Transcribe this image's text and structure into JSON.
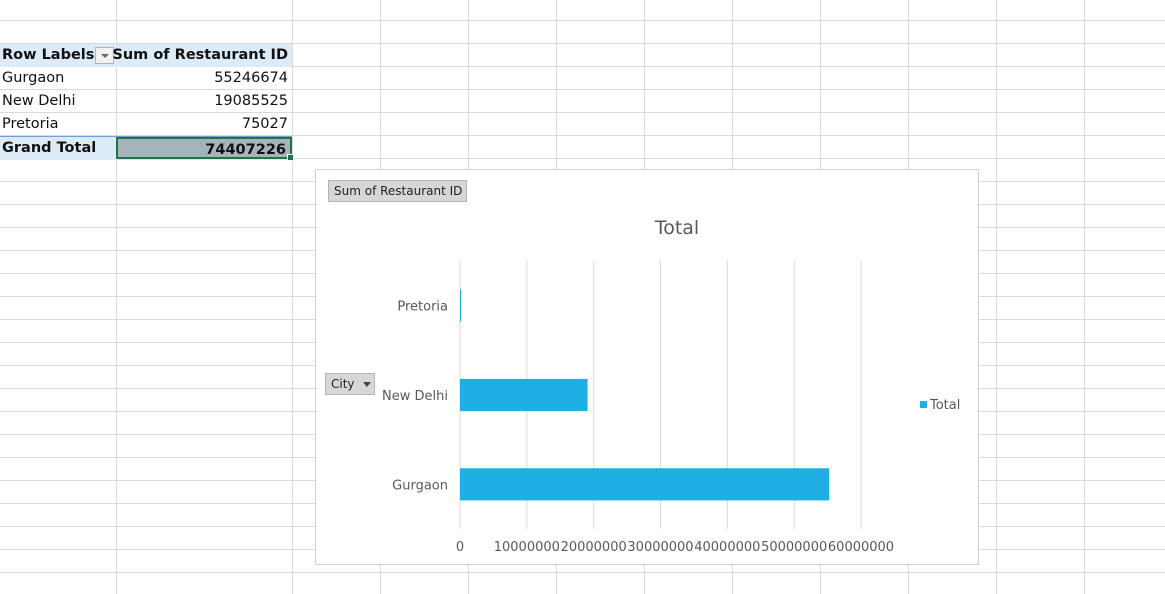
{
  "pivot": {
    "header": {
      "row_labels": "Row Labels",
      "sum_label": "Sum of Restaurant ID"
    },
    "rows": [
      {
        "label": "Gurgaon",
        "value": "55246674"
      },
      {
        "label": "New Delhi",
        "value": "19085525"
      },
      {
        "label": "Pretoria",
        "value": "75027"
      }
    ],
    "total": {
      "label": "Grand Total",
      "value": "74407226"
    }
  },
  "chart": {
    "value_field_button": "Sum of Restaurant ID",
    "axis_field_button": "City",
    "legend_entry": "Total",
    "bar_color": "#1faee3"
  },
  "chart_data": {
    "type": "bar",
    "orientation": "horizontal",
    "title": "Total",
    "categories": [
      "Gurgaon",
      "New Delhi",
      "Pretoria"
    ],
    "series": [
      {
        "name": "Total",
        "values": [
          55246674,
          19085525,
          75027
        ]
      }
    ],
    "xlim": [
      0,
      60000000
    ],
    "x_ticks": [
      "0",
      "10000000",
      "20000000",
      "30000000",
      "40000000",
      "50000000",
      "60000000"
    ],
    "grid": true,
    "legend_position": "right"
  }
}
